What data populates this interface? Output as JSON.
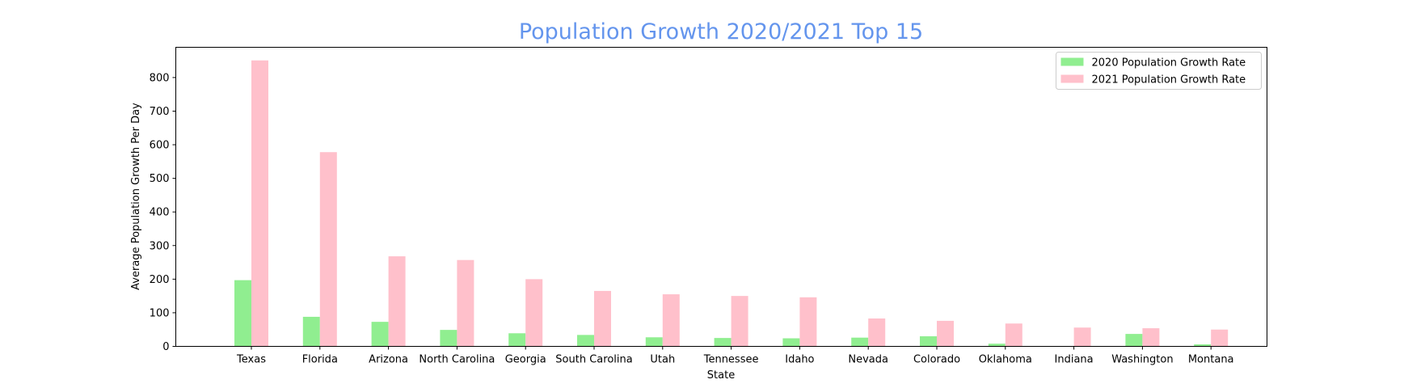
{
  "chart_data": {
    "type": "bar",
    "title": "Population Growth 2020/2021 Top 15",
    "title_color": "#6495ED",
    "xlabel": "State",
    "ylabel": "Average Population Growth Per Day",
    "categories": [
      "Texas",
      "Florida",
      "Arizona",
      "North Carolina",
      "Georgia",
      "South Carolina",
      "Utah",
      "Tennessee",
      "Idaho",
      "Nevada",
      "Colorado",
      "Oklahoma",
      "Indiana",
      "Washington",
      "Montana"
    ],
    "series": [
      {
        "name": "2020 Population Growth Rate",
        "color": "#90EE90",
        "values": [
          197,
          88,
          73,
          49,
          39,
          34,
          27,
          25,
          24,
          26,
          30,
          8,
          0,
          37,
          6
        ]
      },
      {
        "name": "2021 Population Growth Rate",
        "color": "#FFC0CB",
        "values": [
          851,
          578,
          268,
          257,
          200,
          165,
          155,
          150,
          146,
          83,
          76,
          68,
          56,
          54,
          50
        ]
      }
    ],
    "ylim": [
      0,
      890
    ],
    "yticks": [
      0,
      100,
      200,
      300,
      400,
      500,
      600,
      700,
      800
    ],
    "legend_position": "top-right",
    "grid": false
  }
}
